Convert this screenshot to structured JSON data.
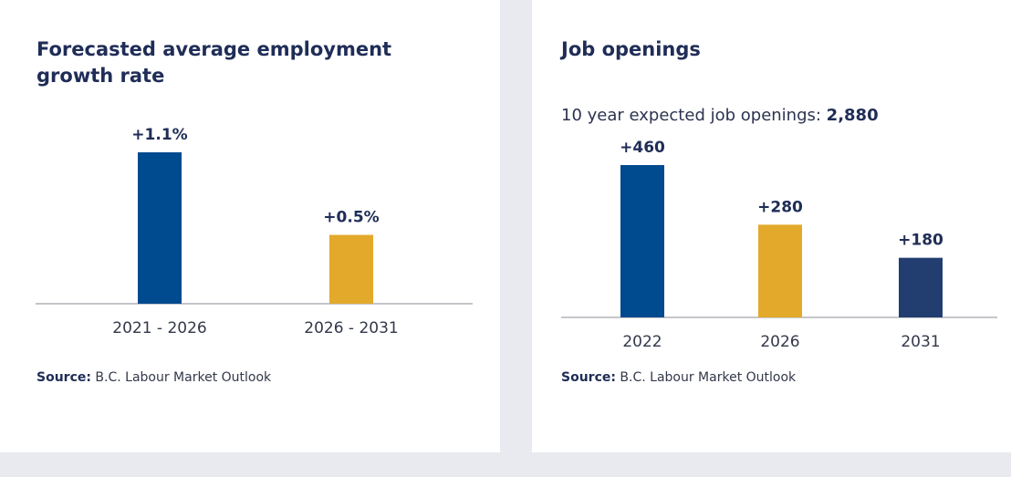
{
  "left_panel": {
    "title_line1": "Forecasted average employment",
    "title_line2": "growth rate",
    "source_label": "Source:",
    "source_text": " B.C. Labour Market Outlook"
  },
  "right_panel": {
    "title": "Job openings",
    "subtitle_prefix": "10 year expected job openings: ",
    "subtitle_value": "2,880",
    "source_label": "Source:",
    "source_text": " B.C. Labour Market Outlook"
  },
  "chart_data": [
    {
      "type": "bar",
      "title": "Forecasted average employment growth rate",
      "categories": [
        "2021 - 2026",
        "2026 - 2031"
      ],
      "values": [
        1.1,
        0.5
      ],
      "labels": [
        "+1.1%",
        "+0.5%"
      ],
      "colors": [
        "#004a8f",
        "#e3a92b"
      ],
      "ylim": [
        0,
        1.1
      ],
      "grid": false
    },
    {
      "type": "bar",
      "title": "Job openings",
      "categories": [
        "2022",
        "2026",
        "2031"
      ],
      "values": [
        460,
        280,
        180
      ],
      "labels": [
        "+460",
        "+280",
        "+180"
      ],
      "colors": [
        "#004a8f",
        "#e3a92b",
        "#223d70"
      ],
      "ylim": [
        0,
        460
      ],
      "grid": false
    }
  ]
}
